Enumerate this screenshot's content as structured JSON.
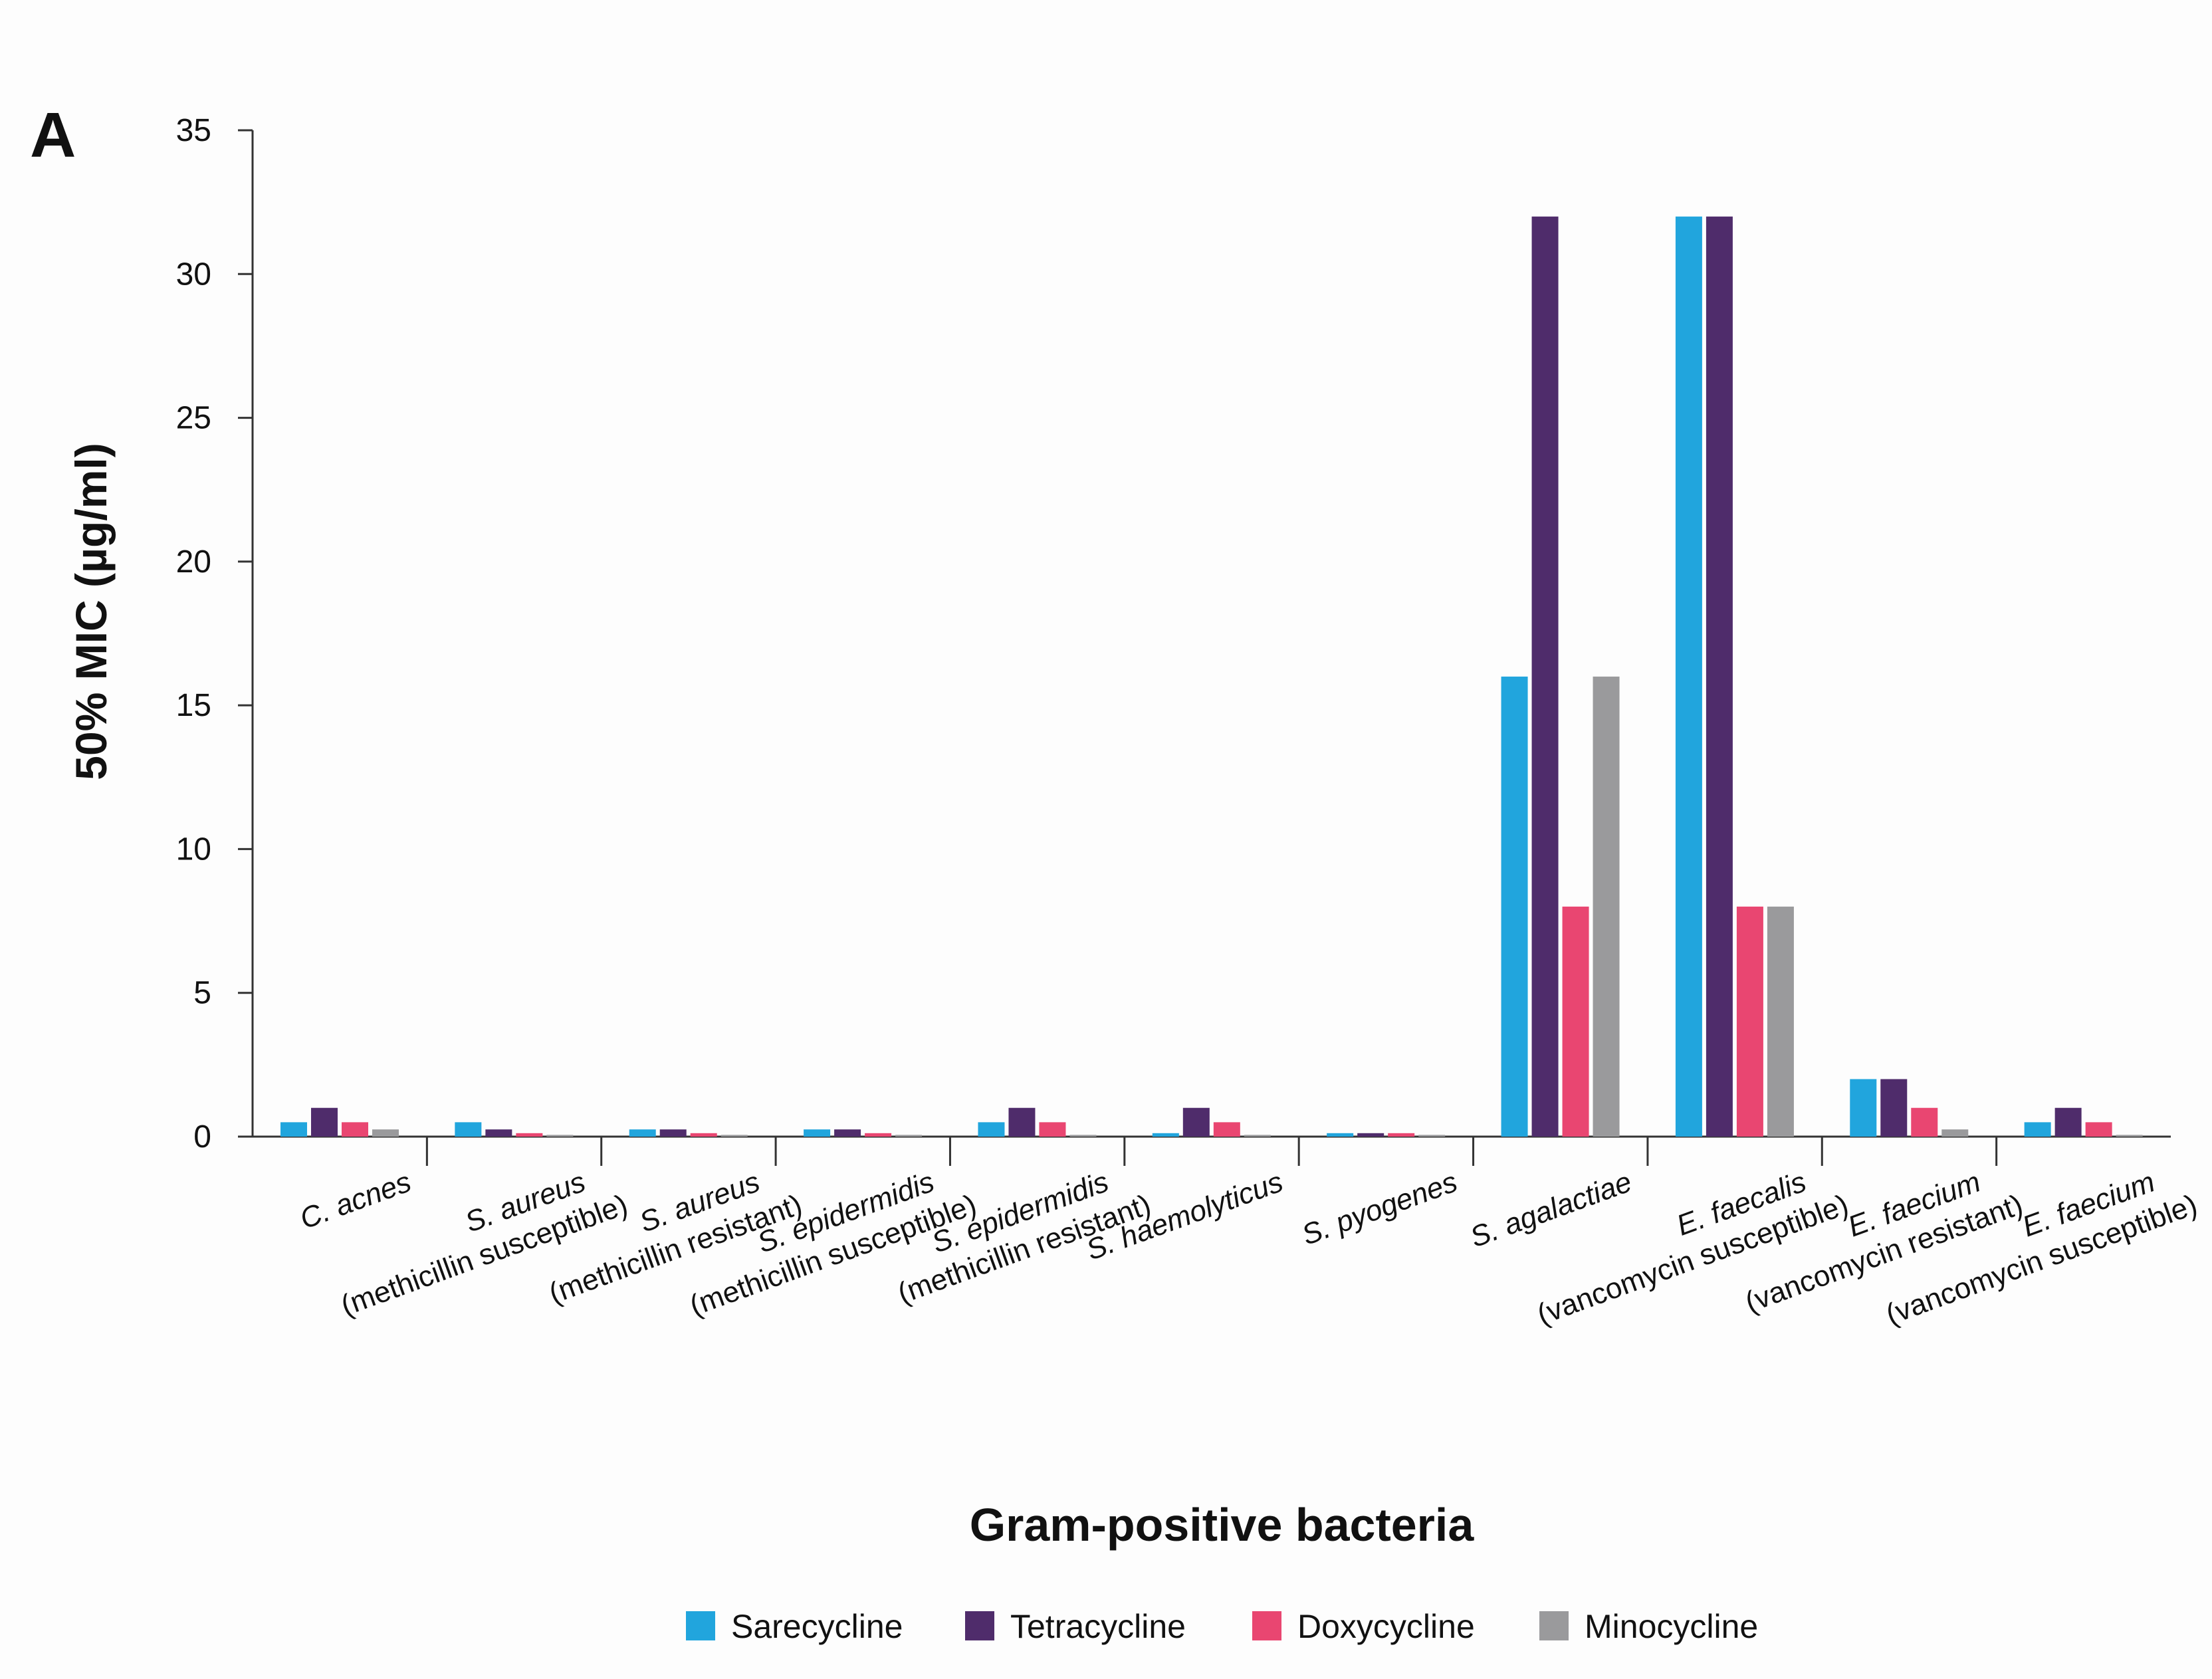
{
  "panel_label": "A",
  "colors": {
    "Sarecycline": "#21a5dd",
    "Tetracycline": "#4f2c6b",
    "Doxycycline": "#e94671",
    "Minocycline": "#9a9a9c",
    "axis": "#333333"
  },
  "chart_data": {
    "type": "bar",
    "title": "",
    "xlabel": "Gram-positive bacteria",
    "ylabel": "50% MIC (µg/ml)",
    "ylim": [
      0,
      35
    ],
    "yticks": [
      0,
      5,
      10,
      15,
      20,
      25,
      30,
      35
    ],
    "grid": false,
    "legend_position": "bottom",
    "categories": [
      {
        "name": "C. acnes",
        "subtitle": ""
      },
      {
        "name": "S. aureus",
        "subtitle": "(methicillin susceptible)"
      },
      {
        "name": "S. aureus",
        "subtitle": "(methicillin resistant)"
      },
      {
        "name": "S. epidermidis",
        "subtitle": "(methicillin susceptible)"
      },
      {
        "name": "S. epidermidis",
        "subtitle": "(methicillin resistant)"
      },
      {
        "name": "S. haemolyticus",
        "subtitle": ""
      },
      {
        "name": "S. pyogenes",
        "subtitle": ""
      },
      {
        "name": "S. agalactiae",
        "subtitle": ""
      },
      {
        "name": "E. faecalis",
        "subtitle": "(vancomycin susceptible)"
      },
      {
        "name": "E. faecium",
        "subtitle": "(vancomycin resistant)"
      },
      {
        "name": "E. faecium",
        "subtitle": "(vancomycin susceptible)"
      }
    ],
    "series": [
      {
        "name": "Sarecycline",
        "values": [
          0.5,
          0.5,
          0.25,
          0.25,
          0.5,
          0.12,
          0.12,
          16,
          32,
          2,
          0.5
        ]
      },
      {
        "name": "Tetracycline",
        "values": [
          1,
          0.25,
          0.25,
          0.25,
          1,
          1,
          0.12,
          32,
          32,
          2,
          1
        ]
      },
      {
        "name": "Doxycycline",
        "values": [
          0.5,
          0.12,
          0.12,
          0.12,
          0.5,
          0.5,
          0.12,
          8,
          8,
          1,
          0.5
        ]
      },
      {
        "name": "Minocycline",
        "values": [
          0.25,
          0.06,
          0.06,
          0.06,
          0.06,
          0.06,
          0.06,
          16,
          8,
          0.25,
          0.06
        ]
      }
    ]
  }
}
